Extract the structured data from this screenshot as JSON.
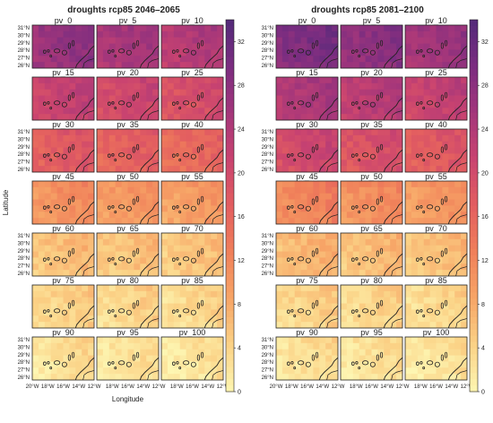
{
  "figures": [
    {
      "title": "droughts rcp85 2046–2065",
      "xlabel": "Longitude",
      "ylabel": "Latitude",
      "panels": [
        {
          "label": "pv_0",
          "level": 0.78
        },
        {
          "label": "pv_5",
          "level": 0.72
        },
        {
          "label": "pv_10",
          "level": 0.68
        },
        {
          "label": "pv_15",
          "level": 0.62
        },
        {
          "label": "pv_20",
          "level": 0.58
        },
        {
          "label": "pv_25",
          "level": 0.55
        },
        {
          "label": "pv_30",
          "level": 0.5
        },
        {
          "label": "pv_35",
          "level": 0.47
        },
        {
          "label": "pv_40",
          "level": 0.44
        },
        {
          "label": "pv_45",
          "level": 0.3
        },
        {
          "label": "pv_50",
          "level": 0.28
        },
        {
          "label": "pv_55",
          "level": 0.26
        },
        {
          "label": "pv_60",
          "level": 0.16
        },
        {
          "label": "pv_65",
          "level": 0.15
        },
        {
          "label": "pv_70",
          "level": 0.14
        },
        {
          "label": "pv_75",
          "level": 0.1
        },
        {
          "label": "pv_80",
          "level": 0.09
        },
        {
          "label": "pv_85",
          "level": 0.08
        },
        {
          "label": "pv_90",
          "level": 0.06
        },
        {
          "label": "pv_95",
          "level": 0.05
        },
        {
          "label": "pv_100",
          "level": 0.04
        }
      ]
    },
    {
      "title": "droughts rcp85 2081–2100",
      "xlabel": "",
      "ylabel": "",
      "panels": [
        {
          "label": "pv_0",
          "level": 0.85
        },
        {
          "label": "pv_5",
          "level": 0.8
        },
        {
          "label": "pv_10",
          "level": 0.75
        },
        {
          "label": "pv_15",
          "level": 0.7
        },
        {
          "label": "pv_20",
          "level": 0.66
        },
        {
          "label": "pv_25",
          "level": 0.62
        },
        {
          "label": "pv_30",
          "level": 0.58
        },
        {
          "label": "pv_35",
          "level": 0.54
        },
        {
          "label": "pv_40",
          "level": 0.5
        },
        {
          "label": "pv_45",
          "level": 0.34
        },
        {
          "label": "pv_50",
          "level": 0.31
        },
        {
          "label": "pv_55",
          "level": 0.28
        },
        {
          "label": "pv_60",
          "level": 0.18
        },
        {
          "label": "pv_65",
          "level": 0.16
        },
        {
          "label": "pv_70",
          "level": 0.15
        },
        {
          "label": "pv_75",
          "level": 0.1
        },
        {
          "label": "pv_80",
          "level": 0.09
        },
        {
          "label": "pv_85",
          "level": 0.08
        },
        {
          "label": "pv_90",
          "level": 0.06
        },
        {
          "label": "pv_95",
          "level": 0.05
        },
        {
          "label": "pv_100",
          "level": 0.04
        }
      ]
    }
  ],
  "lat_ticks": [
    "31°N",
    "30°N",
    "29°N",
    "28°N",
    "27°N",
    "26°N"
  ],
  "lon_ticks": [
    "20°W",
    "18°W",
    "16°W",
    "14°W",
    "12°W"
  ],
  "colorbar": {
    "min": 0,
    "max": 34,
    "ticks": [
      "0",
      "4",
      "8",
      "12",
      "16",
      "20",
      "24",
      "28",
      "32"
    ],
    "colors": [
      "#fdf6b2",
      "#fbd286",
      "#f7a567",
      "#f0805a",
      "#e35e60",
      "#c94370",
      "#a3367b",
      "#7b2d80",
      "#532a7a"
    ]
  }
}
